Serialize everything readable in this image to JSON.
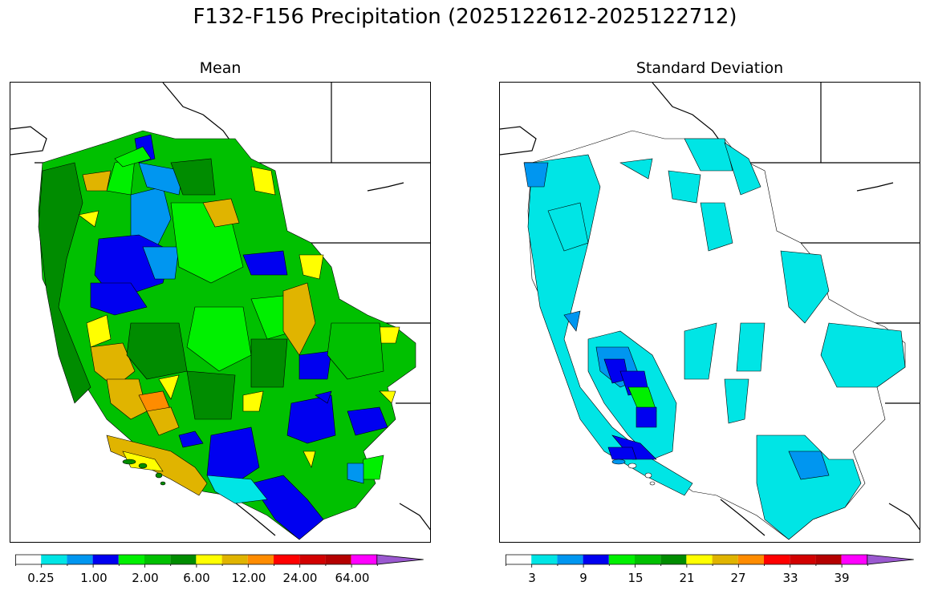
{
  "title": "F132-F156 Precipitation (2025122612-2025122712)",
  "panels": [
    {
      "name": "Mean"
    },
    {
      "name": "Standard Deviation"
    }
  ],
  "colors": {
    "palette": [
      "#ffffff",
      "#00e5e5",
      "#0096f0",
      "#0000f0",
      "#00f000",
      "#00c000",
      "#008c00",
      "#ffff00",
      "#e0b400",
      "#ff8c00",
      "#ff0000",
      "#d20000",
      "#b40000",
      "#ff00ff",
      "#9b59d0"
    ],
    "border": "#000000"
  },
  "mean_colorbar": {
    "tick_labels": [
      "0.25",
      "1.00",
      "2.00",
      "6.00",
      "12.00",
      "24.00",
      "64.00"
    ]
  },
  "std_colorbar": {
    "tick_labels": [
      "3",
      "9",
      "15",
      "21",
      "27",
      "33",
      "39"
    ]
  }
}
